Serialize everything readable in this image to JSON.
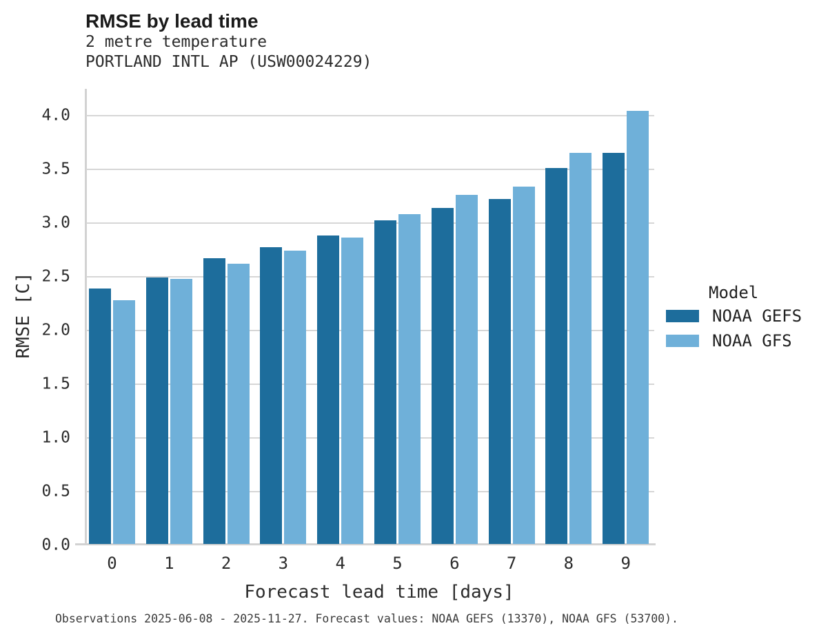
{
  "header": {
    "title": "RMSE by lead time",
    "subtitle1": "2 metre temperature",
    "subtitle2": "PORTLAND INTL AP (USW00024229)"
  },
  "legend": {
    "title": "Model",
    "items": [
      {
        "label": "NOAA GEFS",
        "color": "#1d6d9c"
      },
      {
        "label": "NOAA GFS",
        "color": "#6fb0d9"
      }
    ]
  },
  "caption": "Observations 2025-06-08 - 2025-11-27. Forecast values: NOAA GEFS (13370), NOAA GFS (53700).",
  "chart_data": {
    "type": "bar",
    "title": "RMSE by lead time",
    "subtitle": "2 metre temperature — PORTLAND INTL AP (USW00024229)",
    "categories": [
      "0",
      "1",
      "2",
      "3",
      "4",
      "5",
      "6",
      "7",
      "8",
      "9"
    ],
    "series": [
      {
        "name": "NOAA GEFS",
        "color": "#1d6d9c",
        "values": [
          2.38,
          2.48,
          2.66,
          2.76,
          2.87,
          3.01,
          3.13,
          3.21,
          3.5,
          3.64
        ]
      },
      {
        "name": "NOAA GFS",
        "color": "#6fb0d9",
        "values": [
          2.27,
          2.47,
          2.61,
          2.73,
          2.85,
          3.07,
          3.25,
          3.33,
          3.64,
          4.03
        ]
      }
    ],
    "xlabel": "Forecast lead time [days]",
    "ylabel": "RMSE [C]",
    "yticks": [
      0.0,
      0.5,
      1.0,
      1.5,
      2.0,
      2.5,
      3.0,
      3.5,
      4.0
    ],
    "ylim": [
      0,
      4.25
    ],
    "grid": true,
    "legend_position": "right",
    "legend_title": "Model"
  }
}
